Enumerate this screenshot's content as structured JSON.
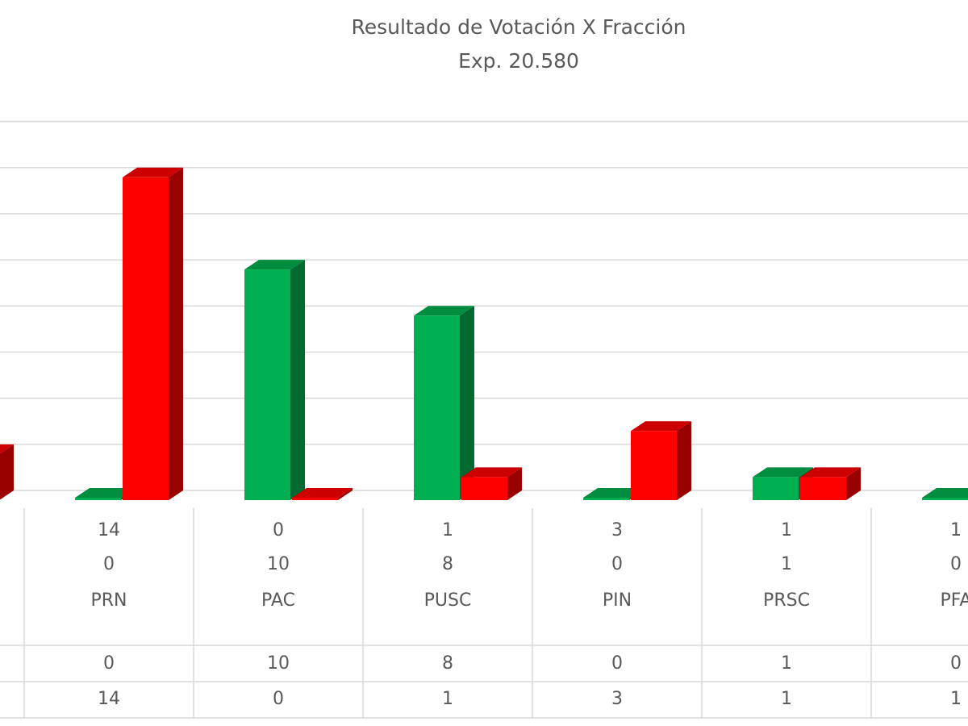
{
  "chart_data": {
    "type": "bar3d",
    "title": "Resultado de Votación X Fracción",
    "subtitle": "Exp. 20.580",
    "categories": [
      null,
      "PRN",
      "PAC",
      "PUSC",
      "PIN",
      "PRSC",
      "PFA"
    ],
    "series": [
      {
        "color": "#00b050",
        "values": [
          null,
          0,
          10,
          8,
          0,
          1,
          0
        ]
      },
      {
        "color": "#ff0000",
        "values": [
          2,
          14,
          0,
          1,
          3,
          1,
          1
        ]
      }
    ],
    "ylim": [
      0,
      17
    ],
    "yticks": [
      0,
      2,
      4,
      6,
      8,
      10,
      12,
      14,
      16
    ],
    "grid": true
  }
}
